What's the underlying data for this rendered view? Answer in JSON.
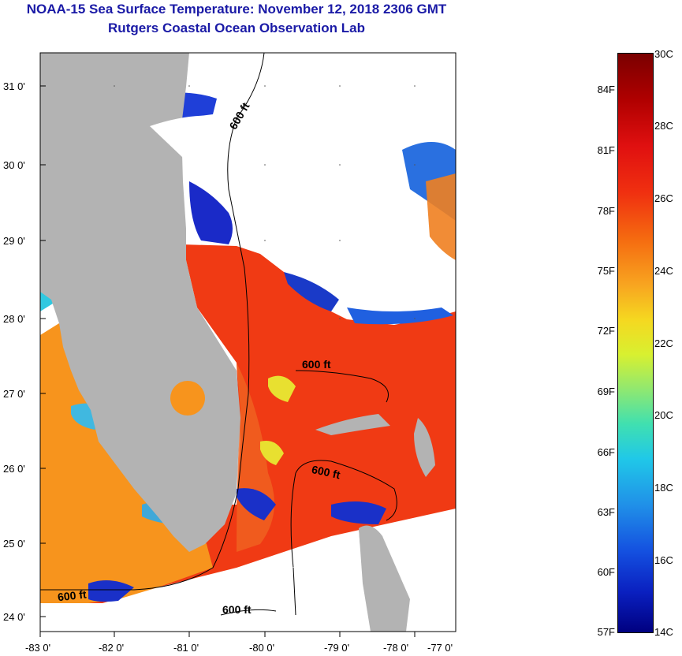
{
  "title": {
    "line1": "NOAA-15 Sea Surface Temperature:  November 12, 2018 2306 GMT",
    "line2": "Rutgers Coastal Ocean Observation Lab"
  },
  "axes": {
    "lat_labels": [
      "31 0'",
      "30 0'",
      "29 0'",
      "28 0'",
      "27 0'",
      "26 0'",
      "25 0'",
      "24 0'"
    ],
    "lon_labels": [
      "-83 0'",
      "-82 0'",
      "-81 0'",
      "-80 0'",
      "-79 0'",
      "-78 0'",
      "-77 0'"
    ]
  },
  "contours": {
    "label_1": "600 ft",
    "label_2": "600 ft",
    "label_3": "600 ft",
    "label_4": "600 ft",
    "label_5": "600 ft"
  },
  "colorbar": {
    "fahrenheit": [
      "84F",
      "81F",
      "78F",
      "75F",
      "72F",
      "69F",
      "66F",
      "63F",
      "60F",
      "57F"
    ],
    "celsius": [
      "30C",
      "28C",
      "26C",
      "24C",
      "22C",
      "20C",
      "18C",
      "16C",
      "14C"
    ]
  },
  "colors": {
    "title": "#1a1aa6",
    "land": "#b3b3b3",
    "warm_water": "#f03a14",
    "cool_water": "#f7941d",
    "cloud": "#ffffff"
  }
}
